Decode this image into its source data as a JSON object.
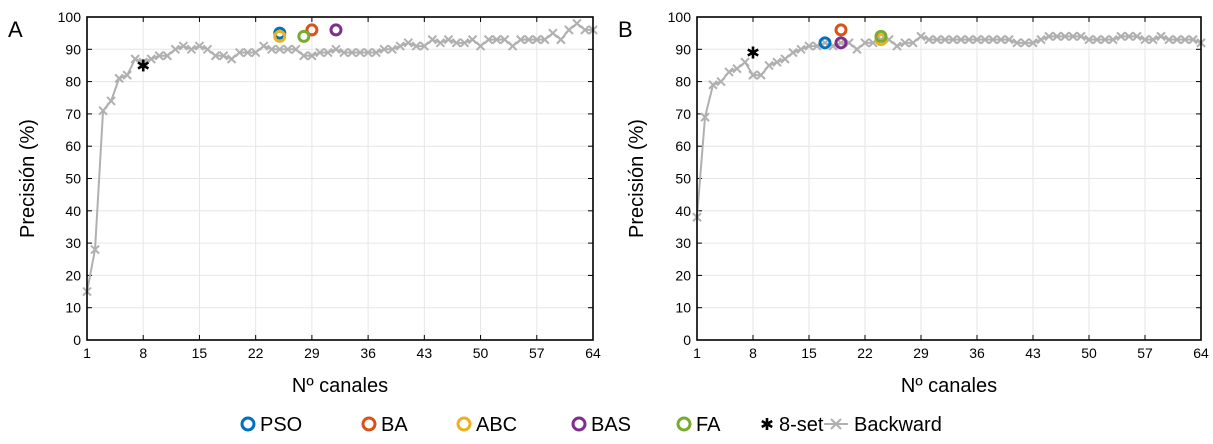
{
  "legend": {
    "placement": "bottom-center",
    "items": [
      {
        "key": "pso",
        "label": "PSO",
        "marker": "circle",
        "color": "#0072BD"
      },
      {
        "key": "ba",
        "label": "BA",
        "marker": "circle",
        "color": "#D95319"
      },
      {
        "key": "abc",
        "label": "ABC",
        "marker": "circle",
        "color": "#EDB120"
      },
      {
        "key": "bas",
        "label": "BAS",
        "marker": "circle",
        "color": "#7E2F8E"
      },
      {
        "key": "fa",
        "label": "FA",
        "marker": "circle",
        "color": "#77AC30"
      },
      {
        "key": "set8",
        "label": "8-set",
        "marker": "star",
        "color": "#000000"
      },
      {
        "key": "backward",
        "label": "Backward",
        "marker": "x-line",
        "color": "#B0B0B0"
      }
    ]
  },
  "chart_data": [
    {
      "panel_label": "A",
      "type": "line",
      "xlabel": "Nº canales",
      "ylabel": "Precisión (%)",
      "xlim": [
        1,
        64
      ],
      "ylim": [
        0,
        100
      ],
      "xticks": [
        "1",
        "8",
        "15",
        "22",
        "29",
        "36",
        "43",
        "50",
        "57",
        "64"
      ],
      "yticks": [
        "0",
        "10",
        "20",
        "30",
        "40",
        "50",
        "60",
        "70",
        "80",
        "90",
        "100"
      ],
      "grid": true,
      "series": [
        {
          "name": "Backward",
          "marker": "x-line",
          "color": "#B0B0B0",
          "x": [
            1,
            2,
            3,
            4,
            5,
            6,
            7,
            8,
            9,
            10,
            11,
            12,
            13,
            14,
            15,
            16,
            17,
            18,
            19,
            20,
            21,
            22,
            23,
            24,
            25,
            26,
            27,
            28,
            29,
            30,
            31,
            32,
            33,
            34,
            35,
            36,
            37,
            38,
            39,
            40,
            41,
            42,
            43,
            44,
            45,
            46,
            47,
            48,
            49,
            50,
            51,
            52,
            53,
            54,
            55,
            56,
            57,
            58,
            59,
            60,
            61,
            62,
            63,
            64
          ],
          "y": [
            15,
            28,
            71,
            74,
            81,
            82,
            87,
            86,
            87,
            88,
            88,
            90,
            91,
            90,
            91,
            90,
            88,
            88,
            87,
            89,
            89,
            89,
            91,
            90,
            90,
            90,
            90,
            88,
            88,
            89,
            89,
            90,
            89,
            89,
            89,
            89,
            89,
            90,
            90,
            91,
            92,
            91,
            91,
            93,
            92,
            93,
            92,
            92,
            93,
            91,
            93,
            93,
            93,
            91,
            93,
            93,
            93,
            93,
            95,
            93,
            96,
            98,
            96,
            96
          ]
        },
        {
          "name": "PSO",
          "marker": "circle",
          "color": "#0072BD",
          "x": [
            25
          ],
          "y": [
            95
          ]
        },
        {
          "name": "BA",
          "marker": "circle",
          "color": "#D95319",
          "x": [
            29
          ],
          "y": [
            96
          ]
        },
        {
          "name": "ABC",
          "marker": "circle",
          "color": "#EDB120",
          "x": [
            25
          ],
          "y": [
            94
          ]
        },
        {
          "name": "BAS",
          "marker": "circle",
          "color": "#7E2F8E",
          "x": [
            32
          ],
          "y": [
            96
          ]
        },
        {
          "name": "FA",
          "marker": "circle",
          "color": "#77AC30",
          "x": [
            28
          ],
          "y": [
            94
          ]
        },
        {
          "name": "8-set",
          "marker": "star",
          "color": "#000000",
          "x": [
            8
          ],
          "y": [
            85
          ]
        }
      ]
    },
    {
      "panel_label": "B",
      "type": "line",
      "xlabel": "Nº canales",
      "ylabel": "Precisión (%)",
      "xlim": [
        1,
        64
      ],
      "ylim": [
        0,
        100
      ],
      "xticks": [
        "1",
        "8",
        "15",
        "22",
        "29",
        "36",
        "43",
        "50",
        "57",
        "64"
      ],
      "yticks": [
        "0",
        "10",
        "20",
        "30",
        "40",
        "50",
        "60",
        "70",
        "80",
        "90",
        "100"
      ],
      "grid": true,
      "series": [
        {
          "name": "Backward",
          "marker": "x-line",
          "color": "#B0B0B0",
          "x": [
            1,
            2,
            3,
            4,
            5,
            6,
            7,
            8,
            9,
            10,
            11,
            12,
            13,
            14,
            15,
            16,
            17,
            18,
            19,
            20,
            21,
            22,
            23,
            24,
            25,
            26,
            27,
            28,
            29,
            30,
            31,
            32,
            33,
            34,
            35,
            36,
            37,
            38,
            39,
            40,
            41,
            42,
            43,
            44,
            45,
            46,
            47,
            48,
            49,
            50,
            51,
            52,
            53,
            54,
            55,
            56,
            57,
            58,
            59,
            60,
            61,
            62,
            63,
            64
          ],
          "y": [
            38,
            69,
            79,
            80,
            83,
            84,
            86,
            82,
            82,
            85,
            86,
            87,
            89,
            90,
            91,
            91,
            92,
            91,
            92,
            92,
            90,
            92,
            92,
            93,
            93,
            91,
            92,
            92,
            94,
            93,
            93,
            93,
            93,
            93,
            93,
            93,
            93,
            93,
            93,
            93,
            92,
            92,
            92,
            93,
            94,
            94,
            94,
            94,
            94,
            93,
            93,
            93,
            93,
            94,
            94,
            94,
            93,
            93,
            94,
            93,
            93,
            93,
            93,
            92
          ]
        },
        {
          "name": "PSO",
          "marker": "circle",
          "color": "#0072BD",
          "x": [
            17
          ],
          "y": [
            92
          ]
        },
        {
          "name": "BA",
          "marker": "circle",
          "color": "#D95319",
          "x": [
            19
          ],
          "y": [
            96
          ]
        },
        {
          "name": "ABC",
          "marker": "circle",
          "color": "#EDB120",
          "x": [
            24
          ],
          "y": [
            93
          ]
        },
        {
          "name": "BAS",
          "marker": "circle",
          "color": "#7E2F8E",
          "x": [
            19
          ],
          "y": [
            92
          ]
        },
        {
          "name": "FA",
          "marker": "circle",
          "color": "#77AC30",
          "x": [
            24
          ],
          "y": [
            94
          ]
        },
        {
          "name": "8-set",
          "marker": "star",
          "color": "#000000",
          "x": [
            8
          ],
          "y": [
            89
          ]
        }
      ]
    }
  ]
}
